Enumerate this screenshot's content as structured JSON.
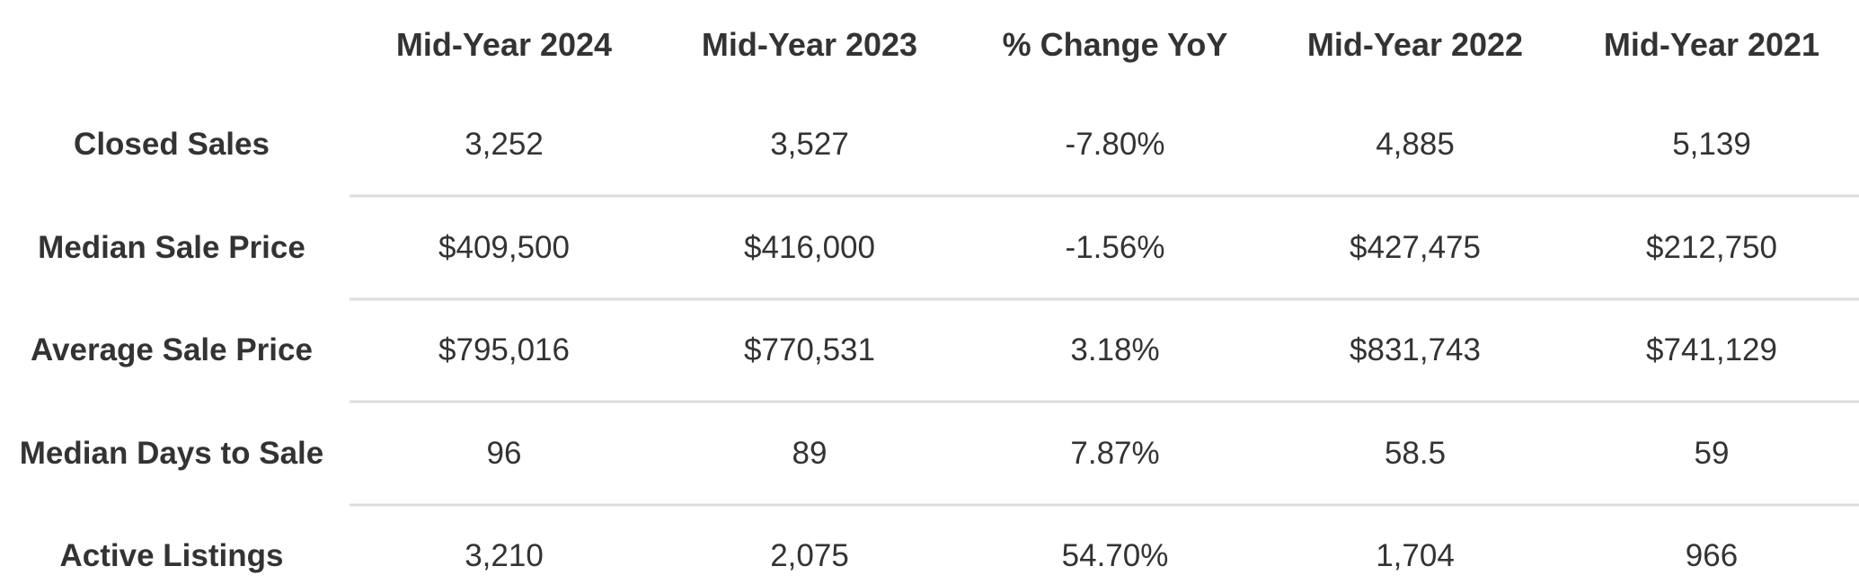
{
  "table": {
    "columns": [
      "Mid-Year 2024",
      "Mid-Year 2023",
      "% Change YoY",
      "Mid-Year 2022",
      "Mid-Year 2021"
    ],
    "rows": [
      {
        "label": "Closed Sales",
        "cells": [
          "3,252",
          "3,527",
          "-7.80%",
          "4,885",
          "5,139"
        ]
      },
      {
        "label": "Median Sale Price",
        "cells": [
          "$409,500",
          "$416,000",
          "-1.56%",
          "$427,475",
          "$212,750"
        ]
      },
      {
        "label": "Average Sale Price",
        "cells": [
          "$795,016",
          "$770,531",
          "3.18%",
          "$831,743",
          "$741,129"
        ]
      },
      {
        "label": "Median Days to Sale",
        "cells": [
          "96",
          "89",
          "7.87%",
          "58.5",
          "59"
        ]
      },
      {
        "label": "Active Listings",
        "cells": [
          "3,210",
          "2,075",
          "54.70%",
          "1,704",
          "966"
        ]
      }
    ]
  }
}
